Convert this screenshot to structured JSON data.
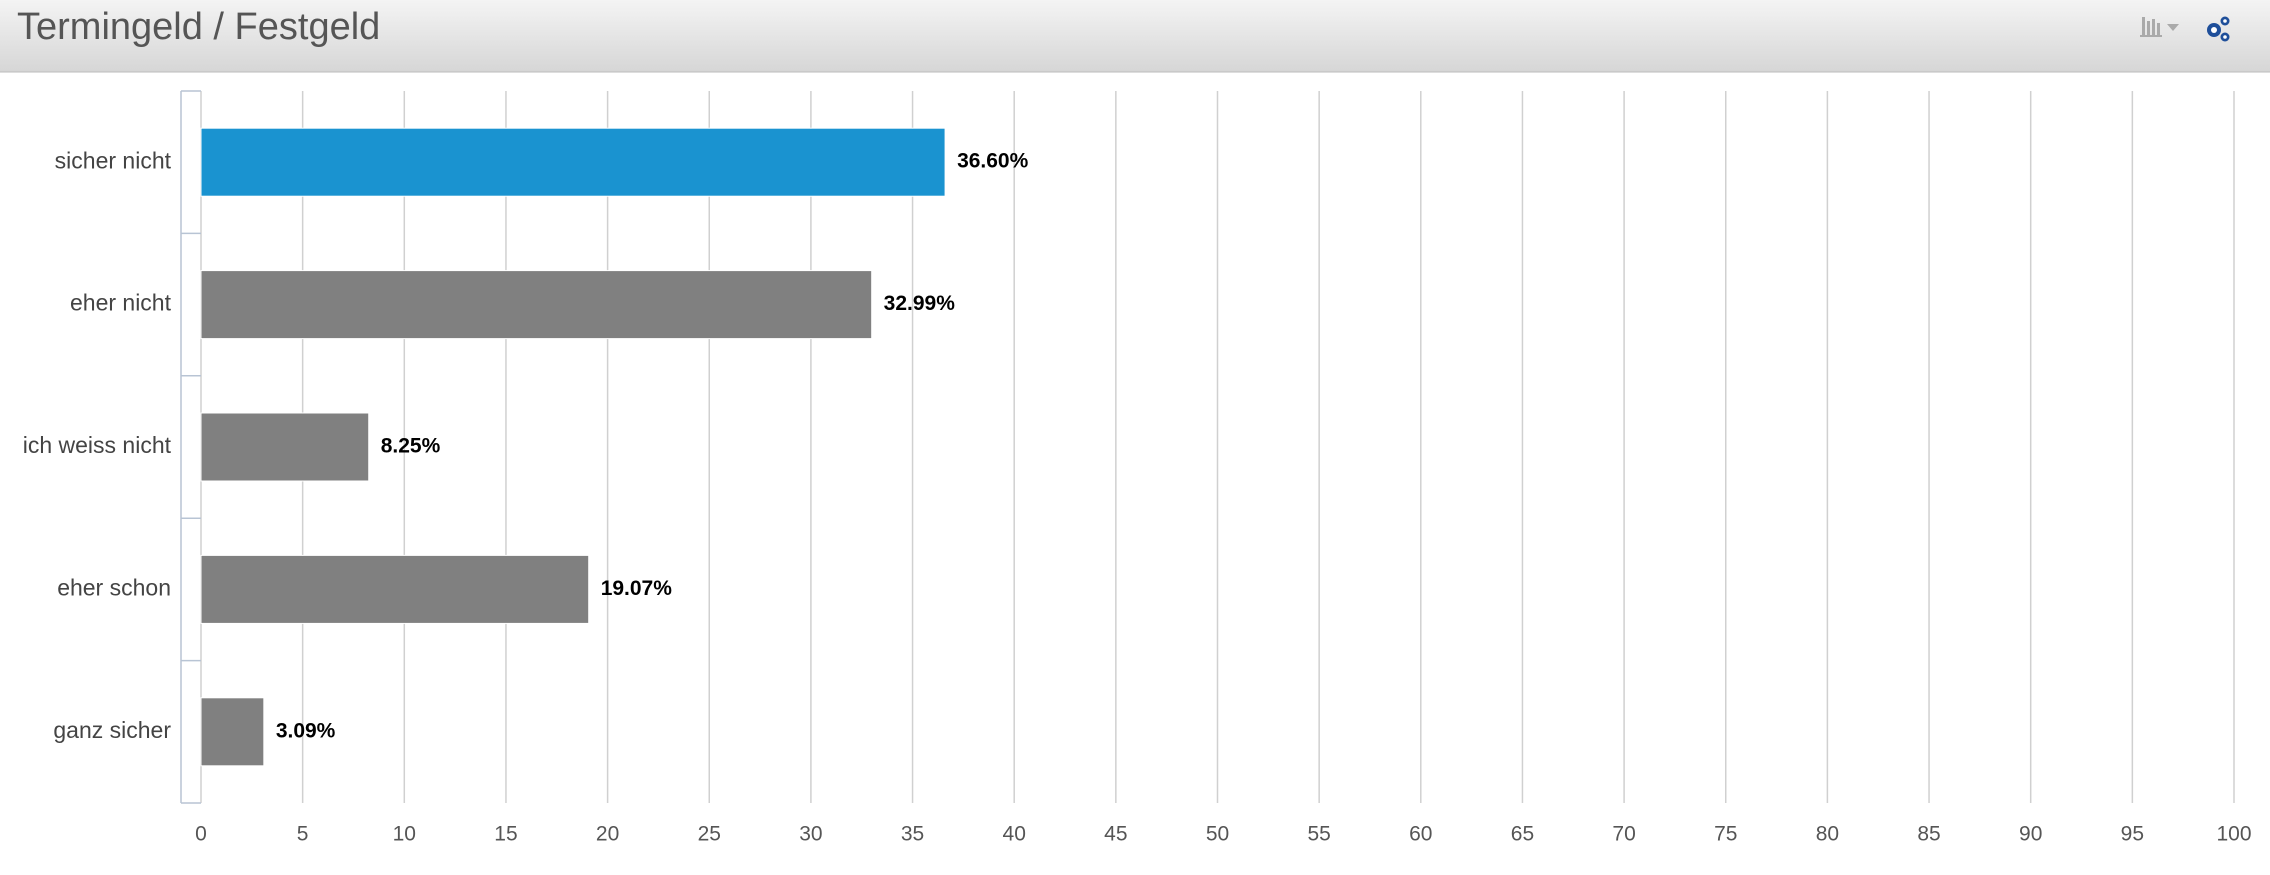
{
  "chart_data": {
    "type": "bar",
    "orientation": "horizontal",
    "title": "Termingeld / Festgeld",
    "categories": [
      "sicher nicht",
      "eher nicht",
      "ich weiss nicht",
      "eher schon",
      "ganz sicher"
    ],
    "values": [
      36.6,
      32.99,
      8.25,
      19.07,
      3.09
    ],
    "value_labels": [
      "36.60%",
      "32.99%",
      "8.25%",
      "19.07%",
      "3.09%"
    ],
    "colors": [
      "#1a93d0",
      "#808080",
      "#808080",
      "#808080",
      "#808080"
    ],
    "xlim": [
      0,
      100
    ],
    "xticks": [
      0,
      5,
      10,
      15,
      20,
      25,
      30,
      35,
      40,
      45,
      50,
      55,
      60,
      65,
      70,
      75,
      80,
      85,
      90,
      95,
      100
    ],
    "grid": true
  }
}
